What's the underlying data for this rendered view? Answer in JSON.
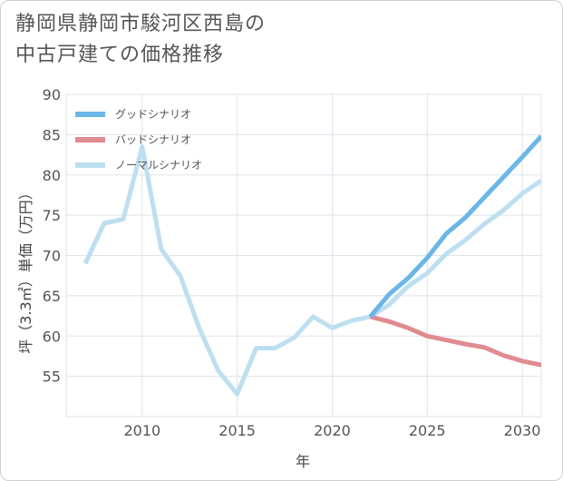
{
  "title_lines": [
    "静岡県静岡市駿河区西島の",
    "中古戸建ての価格推移"
  ],
  "chart_data": {
    "type": "line",
    "title": "静岡県静岡市駿河区西島の中古戸建ての価格推移",
    "xlabel": "年",
    "ylabel": "坪（3.3㎡）単価（万円）",
    "xlim": [
      2006,
      2031
    ],
    "ylim": [
      50,
      90
    ],
    "x_ticks": [
      2010,
      2015,
      2020,
      2025,
      2030
    ],
    "y_ticks": [
      55,
      60,
      65,
      70,
      75,
      80,
      85,
      90
    ],
    "grid": true,
    "legend_position": "top-left",
    "series": [
      {
        "name": "グッドシナリオ",
        "color": "#6bb6e8",
        "x": [
          2022,
          2023,
          2024,
          2025,
          2026,
          2027,
          2028,
          2029,
          2030,
          2031
        ],
        "y": [
          62.4,
          65.2,
          67.2,
          69.7,
          72.7,
          74.7,
          77.2,
          79.7,
          82.2,
          84.8
        ]
      },
      {
        "name": "バッドシナリオ",
        "color": "#e08a92",
        "x": [
          2022,
          2023,
          2024,
          2025,
          2026,
          2027,
          2028,
          2029,
          2030,
          2031
        ],
        "y": [
          62.4,
          61.8,
          61.0,
          60.0,
          59.5,
          59.0,
          58.6,
          57.6,
          56.9,
          56.4
        ]
      },
      {
        "name": "ノーマルシナリオ",
        "color": "#bddff0",
        "x": [
          2007,
          2008,
          2009,
          2010,
          2011,
          2012,
          2013,
          2014,
          2015,
          2016,
          2017,
          2018,
          2019,
          2020,
          2021,
          2022,
          2023,
          2024,
          2025,
          2026,
          2027,
          2028,
          2029,
          2030,
          2031
        ],
        "y": [
          69.0,
          74.0,
          74.5,
          83.5,
          70.8,
          67.5,
          61.0,
          55.7,
          52.8,
          58.5,
          58.5,
          59.8,
          62.4,
          61.0,
          61.9,
          62.4,
          63.9,
          66.2,
          67.8,
          70.2,
          71.9,
          73.9,
          75.6,
          77.7,
          79.3
        ]
      }
    ]
  }
}
